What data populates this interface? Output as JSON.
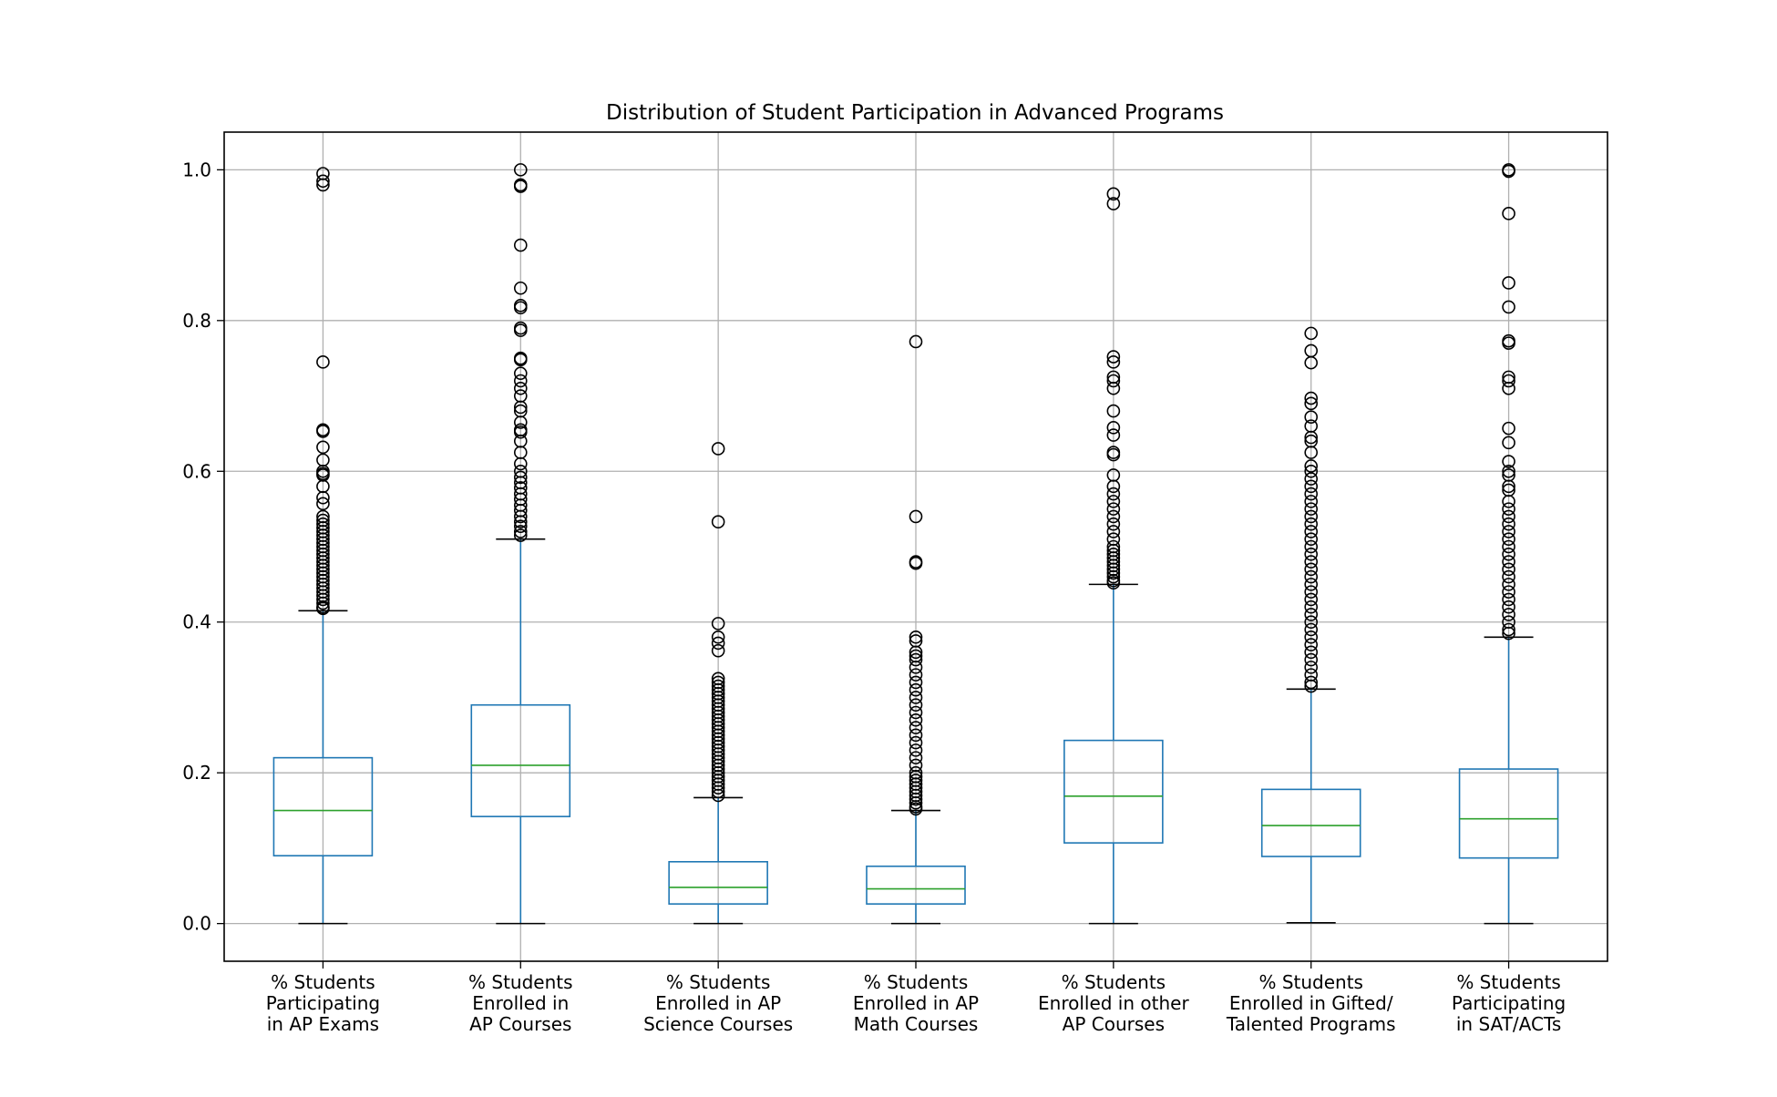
{
  "chart_data": {
    "type": "box",
    "title": "Distribution of Student Participation in Advanced Programs",
    "xlabel": "",
    "ylabel": "",
    "ylim": [
      -0.05,
      1.05
    ],
    "yticks": [
      0.0,
      0.2,
      0.4,
      0.6,
      0.8,
      1.0
    ],
    "ytick_labels": [
      "0.0",
      "0.2",
      "0.4",
      "0.6",
      "0.8",
      "1.0"
    ],
    "grid": true,
    "legend": "none",
    "colors": {
      "box": "#1f77b4",
      "median": "#2ca02c",
      "whisker": "#1f77b4",
      "cap": "#000000",
      "flier": "#000000",
      "grid": "#b0b0b0"
    },
    "categories": [
      [
        "% Students",
        "Participating",
        "in AP Exams"
      ],
      [
        "% Students",
        "Enrolled in",
        "AP Courses"
      ],
      [
        "% Students",
        "Enrolled in AP",
        "Science Courses"
      ],
      [
        "% Students",
        "Enrolled in AP",
        "Math Courses"
      ],
      [
        "% Students",
        "Enrolled in other",
        "AP Courses"
      ],
      [
        "% Students",
        "Enrolled in Gifted/",
        "Talented Programs"
      ],
      [
        "% Students",
        "Participating",
        "in SAT/ACTs"
      ]
    ],
    "boxes": [
      {
        "whislo": 0.0,
        "q1": 0.09,
        "median": 0.15,
        "q3": 0.22,
        "whishi": 0.415,
        "fliers": [
          0.995,
          0.985,
          0.98,
          0.745,
          0.655,
          0.653,
          0.632,
          0.615,
          0.6,
          0.597,
          0.595,
          0.58,
          0.565,
          0.557,
          0.54,
          0.535,
          0.53,
          0.525,
          0.52,
          0.515,
          0.51,
          0.505,
          0.5,
          0.495,
          0.49,
          0.485,
          0.48,
          0.475,
          0.47,
          0.465,
          0.46,
          0.455,
          0.45,
          0.445,
          0.44,
          0.435,
          0.43,
          0.425,
          0.42,
          0.418
        ]
      },
      {
        "whislo": 0.0,
        "q1": 0.142,
        "median": 0.21,
        "q3": 0.29,
        "whishi": 0.51,
        "fliers": [
          1.0,
          0.98,
          0.978,
          0.9,
          0.843,
          0.82,
          0.817,
          0.79,
          0.787,
          0.75,
          0.748,
          0.73,
          0.72,
          0.71,
          0.7,
          0.685,
          0.68,
          0.665,
          0.655,
          0.652,
          0.64,
          0.625,
          0.61,
          0.6,
          0.592,
          0.585,
          0.578,
          0.57,
          0.563,
          0.555,
          0.548,
          0.54,
          0.533,
          0.527,
          0.52,
          0.515
        ]
      },
      {
        "whislo": 0.0,
        "q1": 0.026,
        "median": 0.048,
        "q3": 0.082,
        "whishi": 0.167,
        "fliers": [
          0.63,
          0.533,
          0.398,
          0.38,
          0.372,
          0.362,
          0.325,
          0.32,
          0.315,
          0.31,
          0.305,
          0.3,
          0.295,
          0.29,
          0.285,
          0.28,
          0.275,
          0.27,
          0.265,
          0.26,
          0.255,
          0.25,
          0.245,
          0.24,
          0.235,
          0.23,
          0.225,
          0.22,
          0.215,
          0.21,
          0.205,
          0.2,
          0.195,
          0.19,
          0.185,
          0.18,
          0.175,
          0.17
        ]
      },
      {
        "whislo": 0.0,
        "q1": 0.026,
        "median": 0.046,
        "q3": 0.076,
        "whishi": 0.15,
        "fliers": [
          0.772,
          0.54,
          0.48,
          0.478,
          0.38,
          0.375,
          0.36,
          0.355,
          0.35,
          0.34,
          0.33,
          0.32,
          0.31,
          0.3,
          0.29,
          0.28,
          0.27,
          0.26,
          0.25,
          0.24,
          0.23,
          0.22,
          0.21,
          0.2,
          0.195,
          0.19,
          0.185,
          0.18,
          0.175,
          0.17,
          0.165,
          0.16,
          0.155,
          0.152
        ]
      },
      {
        "whislo": 0.0,
        "q1": 0.107,
        "median": 0.169,
        "q3": 0.243,
        "whishi": 0.45,
        "fliers": [
          0.968,
          0.955,
          0.752,
          0.745,
          0.725,
          0.72,
          0.71,
          0.68,
          0.658,
          0.648,
          0.625,
          0.622,
          0.595,
          0.58,
          0.57,
          0.56,
          0.55,
          0.54,
          0.53,
          0.52,
          0.51,
          0.5,
          0.495,
          0.49,
          0.485,
          0.48,
          0.475,
          0.47,
          0.465,
          0.46,
          0.455,
          0.452
        ]
      },
      {
        "whislo": 0.001,
        "q1": 0.089,
        "median": 0.13,
        "q3": 0.178,
        "whishi": 0.311,
        "fliers": [
          0.783,
          0.76,
          0.744,
          0.697,
          0.69,
          0.672,
          0.66,
          0.645,
          0.64,
          0.625,
          0.607,
          0.6,
          0.59,
          0.58,
          0.57,
          0.56,
          0.55,
          0.54,
          0.53,
          0.52,
          0.51,
          0.5,
          0.49,
          0.48,
          0.47,
          0.46,
          0.45,
          0.44,
          0.43,
          0.42,
          0.41,
          0.4,
          0.39,
          0.38,
          0.37,
          0.36,
          0.35,
          0.34,
          0.33,
          0.32,
          0.315
        ]
      },
      {
        "whislo": 0.0,
        "q1": 0.087,
        "median": 0.139,
        "q3": 0.205,
        "whishi": 0.38,
        "fliers": [
          1.0,
          0.998,
          0.942,
          0.85,
          0.818,
          0.773,
          0.77,
          0.725,
          0.72,
          0.71,
          0.657,
          0.638,
          0.613,
          0.6,
          0.595,
          0.58,
          0.575,
          0.56,
          0.55,
          0.54,
          0.53,
          0.52,
          0.51,
          0.5,
          0.49,
          0.48,
          0.47,
          0.46,
          0.45,
          0.44,
          0.43,
          0.42,
          0.41,
          0.4,
          0.39,
          0.385
        ]
      }
    ]
  }
}
